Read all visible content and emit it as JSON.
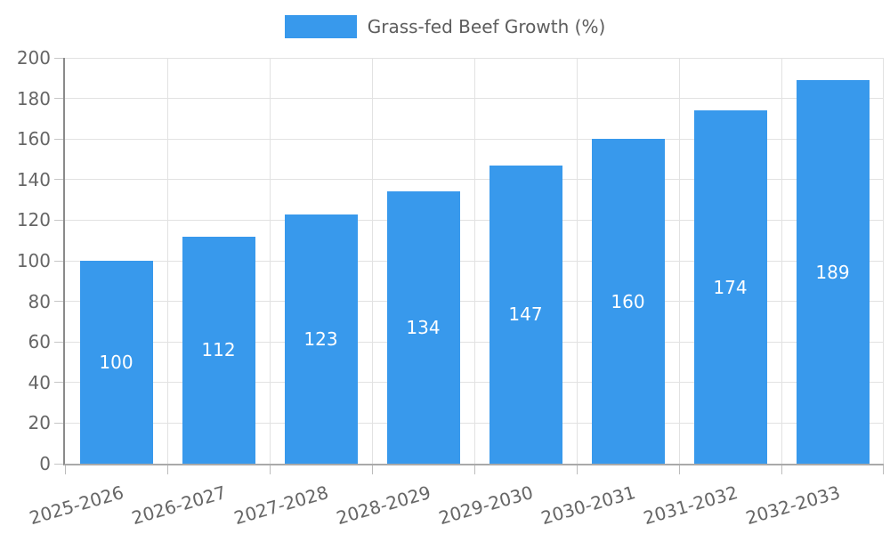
{
  "legend": {
    "label": "Grass-fed Beef Growth (%)"
  },
  "colors": {
    "bar": "#3899ec",
    "grid": "#e2e2e2",
    "y_axis": "#8a8a8a",
    "x_axis": "#a9a9a9",
    "tick": "#c0c0c0",
    "tick_label": "#666666",
    "legend_text": "#5d5d5d",
    "value_label": "#ffffff",
    "background": "#ffffff"
  },
  "chart_data": {
    "type": "bar",
    "title": "Grass-fed Beef Growth (%)",
    "categories": [
      "2025-2026",
      "2026-2027",
      "2027-2028",
      "2028-2029",
      "2029-2030",
      "2030-2031",
      "2031-2032",
      "2032-2033"
    ],
    "series": [
      {
        "name": "Grass-fed Beef Growth (%)",
        "values": [
          100,
          112,
          123,
          134,
          147,
          160,
          174,
          189
        ]
      }
    ],
    "value_labels": [
      "100",
      "112",
      "123",
      "134",
      "147",
      "160",
      "174",
      "189"
    ],
    "value_label_position": "inside-center",
    "xlabel": "",
    "ylabel": "",
    "ylim": [
      0,
      200
    ],
    "y_ticks": [
      0,
      20,
      40,
      60,
      80,
      100,
      120,
      140,
      160,
      180,
      200
    ],
    "x_tick_rotation_deg": -16,
    "grid": true,
    "legend_position": "top-center"
  }
}
